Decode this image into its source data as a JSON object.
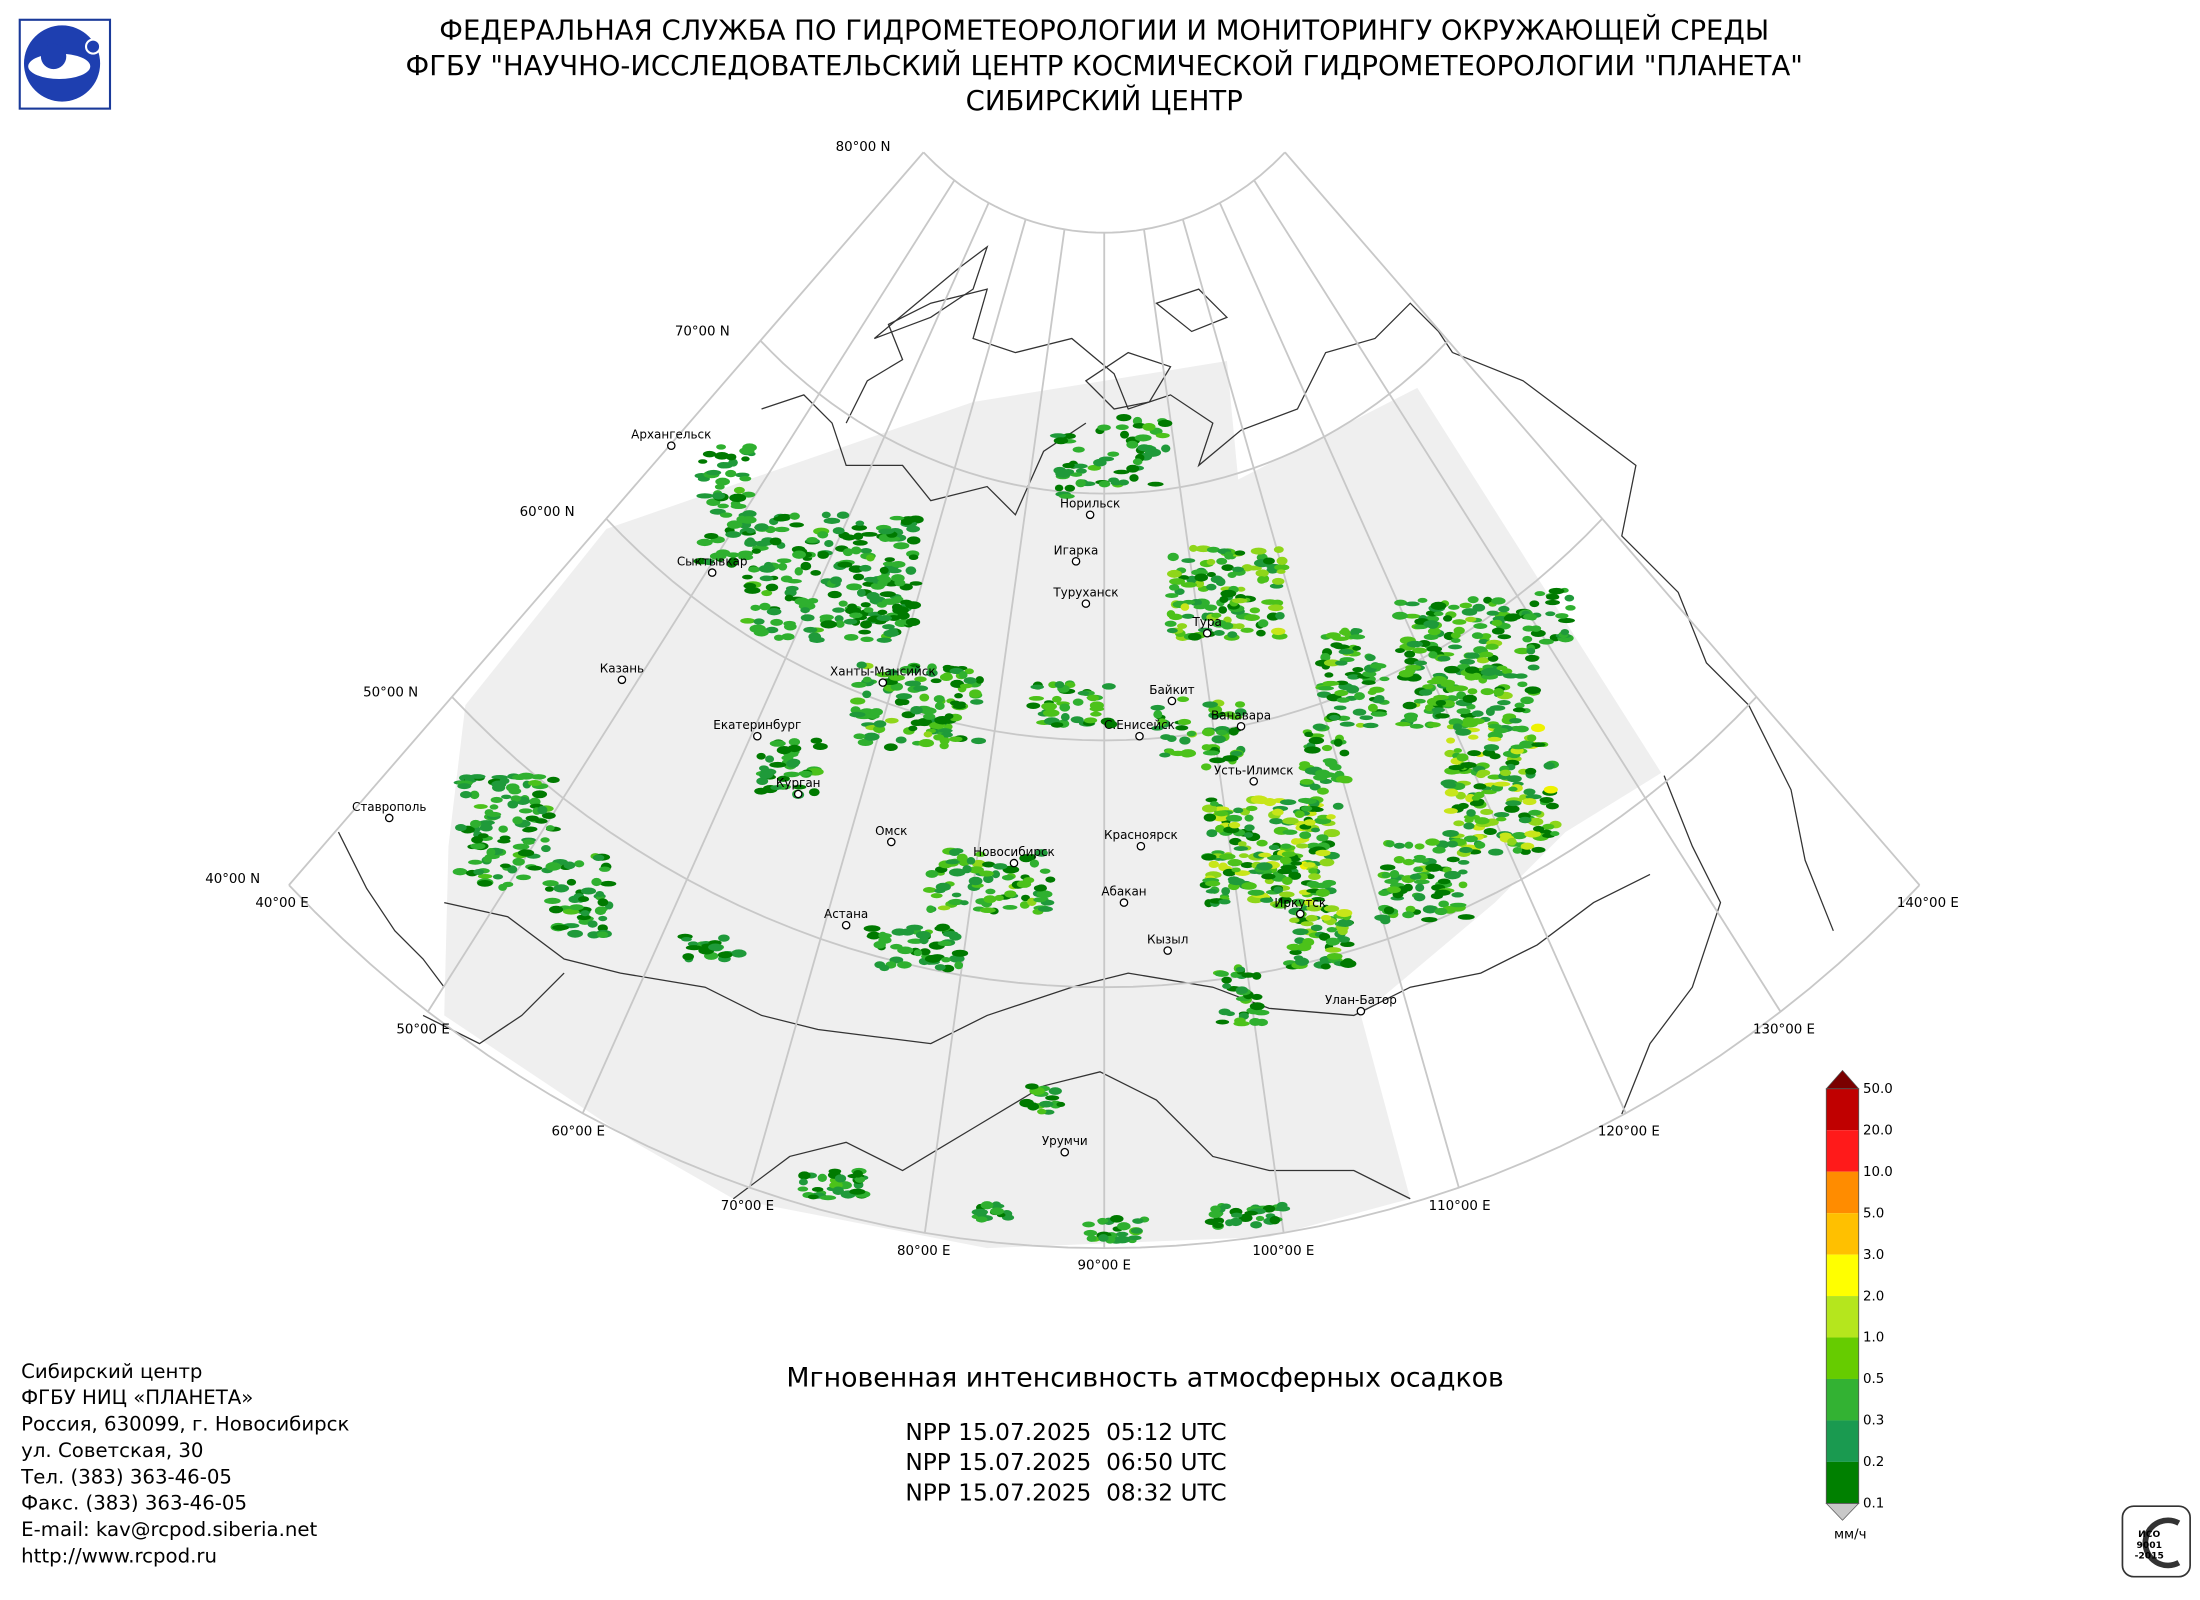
{
  "header": {
    "lines": [
      "ФЕДЕРАЛЬНАЯ СЛУЖБА ПО ГИДРОМЕТЕОРОЛОГИИ И МОНИТОРИНГУ ОКРУЖАЮЩЕЙ СРЕДЫ",
      "ФГБУ \"НАУЧНО-ИССЛЕДОВАТЕЛЬСКИЙ ЦЕНТР КОСМИЧЕСКОЙ ГИДРОМЕТЕОРОЛОГИИ \"ПЛАНЕТА\"",
      "СИБИРСКИЙ ЦЕНТР"
    ]
  },
  "map": {
    "parallel_labels": [
      "80°00 N",
      "70°00 N",
      "60°00 N",
      "50°00 N",
      "40°00 N"
    ],
    "meridian_labels": [
      "40°00 E",
      "50°00 E",
      "60°00 E",
      "70°00 E",
      "80°00 E",
      "90°00 E",
      "100°00 E",
      "110°00 E",
      "120°00 E",
      "130°00 E",
      "140°00 E"
    ],
    "cities": [
      "Архангельск",
      "Сыктывкар",
      "Казань",
      "Екатеринбург",
      "Ставрополь",
      "Курган",
      "Ханты-Мансийск",
      "Омск",
      "Астана",
      "Новосибирск",
      "Норильск",
      "Игарка",
      "Туруханск",
      "Тура",
      "Байкит",
      "С.Енисейск",
      "Ванавара",
      "Усть-Илимск",
      "Красноярск",
      "Абакан",
      "Кызыл",
      "Иркутск",
      "Улан-Батор",
      "Урумчи"
    ]
  },
  "legend": {
    "labels": [
      "50.0",
      "20.0",
      "10.0",
      "5.0",
      "3.0",
      "2.0",
      "1.0",
      "0.5",
      "0.3",
      "0.2",
      "0.1"
    ],
    "unit": "мм/ч"
  },
  "caption": {
    "title": "Мгновенная интенсивность атмосферных осадков",
    "passes": [
      "NPP 15.07.2025  05:12 UTC",
      "NPP 15.07.2025  06:50 UTC",
      "NPP 15.07.2025  08:32 UTC"
    ]
  },
  "contact": {
    "lines": [
      "Сибирский центр",
      "ФГБУ НИЦ «ПЛАНЕТА»",
      "Россия, 630099, г. Новосибирск",
      "ул. Советская, 30",
      "Тел. (383) 363-46-05",
      "Факс. (383) 363-46-05",
      "E-mail: kav@rcpod.siberia.net",
      "http://www.rcpod.ru"
    ]
  },
  "iso_badge": {
    "lines": [
      "ИСО",
      "9001",
      "-2015"
    ]
  }
}
